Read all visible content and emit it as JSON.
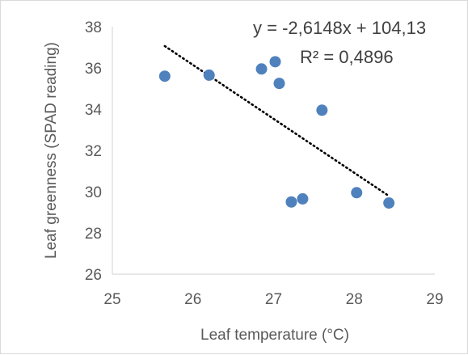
{
  "chart_data": {
    "type": "scatter",
    "title": "",
    "xlabel": "Leaf temperature (°C)",
    "ylabel": "Leaf greenness (SPAD reading)",
    "xlim": [
      25,
      29
    ],
    "ylim": [
      26,
      38
    ],
    "x_ticks": [
      "25",
      "26",
      "27",
      "28",
      "29"
    ],
    "y_ticks": [
      "26",
      "28",
      "30",
      "32",
      "34",
      "36",
      "38"
    ],
    "grid": false,
    "legend": "none",
    "series": [
      {
        "color": "#4f81bd",
        "points": [
          {
            "x": 25.65,
            "y": 35.6
          },
          {
            "x": 26.2,
            "y": 35.65
          },
          {
            "x": 26.85,
            "y": 35.95
          },
          {
            "x": 27.02,
            "y": 36.3
          },
          {
            "x": 27.07,
            "y": 35.25
          },
          {
            "x": 27.6,
            "y": 33.95
          },
          {
            "x": 27.22,
            "y": 29.5
          },
          {
            "x": 27.36,
            "y": 29.65
          },
          {
            "x": 28.03,
            "y": 29.95
          },
          {
            "x": 28.43,
            "y": 29.45
          }
        ]
      }
    ],
    "trendline": {
      "style": "dotted",
      "color": "#000000",
      "x_start": 25.65,
      "x_end": 28.43,
      "slope": -2.6148,
      "intercept": 104.13
    },
    "annotations": {
      "equation": "y = -2,6148x + 104,13",
      "r_squared": "R² = 0,4896"
    }
  }
}
